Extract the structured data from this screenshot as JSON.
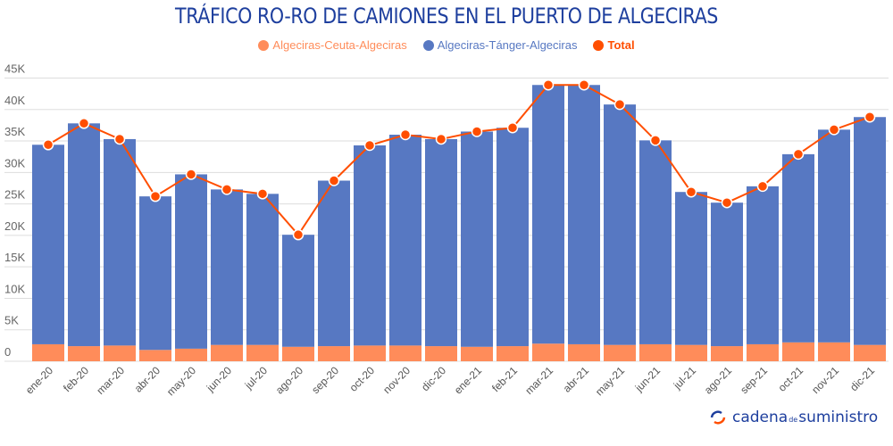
{
  "chart_data": {
    "type": "bar",
    "stacked": true,
    "title": "TRÁFICO RO-RO DE CAMIONES EN EL PUERTO DE ALGECIRAS",
    "categories": [
      "ene-20",
      "feb-20",
      "mar-20",
      "abr-20",
      "may-20",
      "jun-20",
      "jul-20",
      "ago-20",
      "sep-20",
      "oct-20",
      "nov-20",
      "dic-20",
      "ene-21",
      "feb-21",
      "mar-21",
      "abr-21",
      "may-21",
      "jun-21",
      "jul-21",
      "ago-21",
      "sep-21",
      "oct-21",
      "nov-21",
      "dic-21"
    ],
    "series": [
      {
        "name": "Algeciras-Ceuta-Algeciras",
        "type": "bar",
        "color": "#ff8c5a",
        "values": [
          2700,
          2400,
          2500,
          1800,
          2000,
          2600,
          2600,
          2300,
          2400,
          2500,
          2500,
          2400,
          2300,
          2400,
          2800,
          2700,
          2600,
          2700,
          2600,
          2400,
          2700,
          3000,
          3000,
          2600
        ]
      },
      {
        "name": "Algeciras-Tánger-Algeciras",
        "type": "bar",
        "color": "#5778c2",
        "values": [
          31700,
          35400,
          32800,
          24400,
          27700,
          24700,
          24000,
          17800,
          26300,
          31800,
          33500,
          32900,
          34200,
          34700,
          41100,
          41200,
          38200,
          32400,
          24300,
          22800,
          25100,
          29900,
          33800,
          36200
        ]
      },
      {
        "name": "Total",
        "type": "line",
        "color": "#ff4e00",
        "values": [
          34400,
          37800,
          35300,
          26200,
          29700,
          27300,
          26600,
          20100,
          28700,
          34300,
          36000,
          35300,
          36500,
          37100,
          43900,
          43900,
          40800,
          35100,
          26900,
          25200,
          27800,
          32900,
          36800,
          38800
        ]
      }
    ],
    "yticks": [
      "0",
      "5K",
      "10K",
      "15K",
      "20K",
      "25K",
      "30K",
      "35K",
      "40K",
      "45K"
    ],
    "ylim": [
      0,
      45000
    ],
    "grid": true,
    "legend": "top-center"
  },
  "logo": {
    "part1": "cadena",
    "part2": "de",
    "part3": "suministro"
  }
}
